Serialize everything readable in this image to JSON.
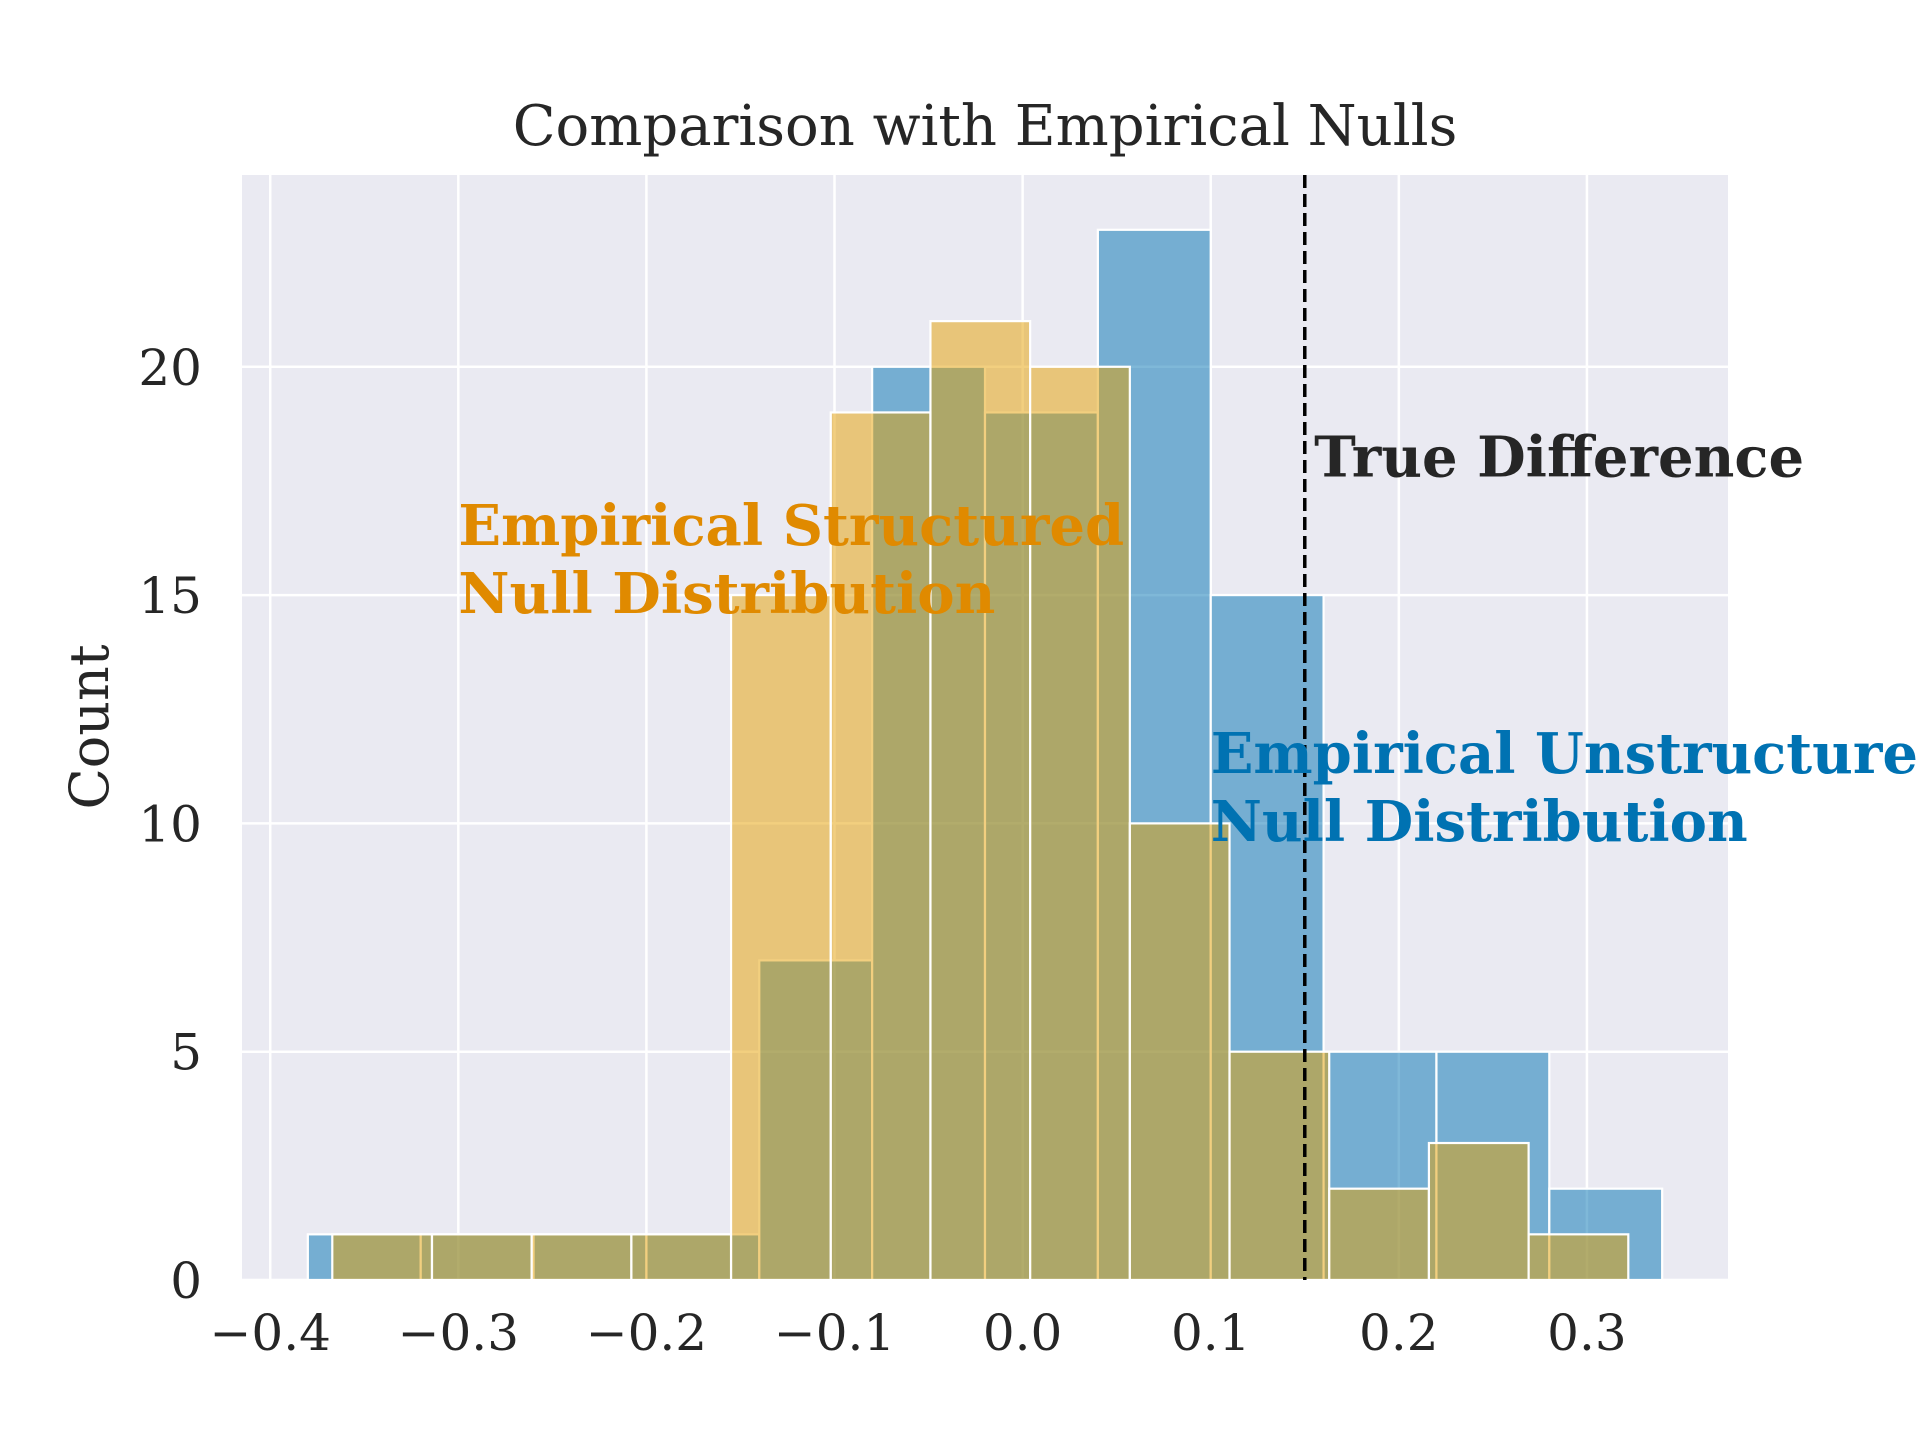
{
  "chart_data": {
    "type": "bar",
    "subtype": "overlaid-histogram",
    "title": "Comparison with Empirical Nulls",
    "xlabel": "",
    "ylabel": "Count",
    "xlim": [
      -0.415,
      0.375
    ],
    "ylim": [
      0,
      24.2
    ],
    "xticks": [
      -0.4,
      -0.3,
      -0.2,
      -0.1,
      0.0,
      0.1,
      0.2,
      0.3
    ],
    "xtick_labels": [
      "−0.4",
      "−0.3",
      "−0.2",
      "−0.1",
      "0.0",
      "0.1",
      "0.2",
      "0.3"
    ],
    "yticks": [
      0,
      5,
      10,
      15,
      20
    ],
    "ytick_labels": [
      "0",
      "5",
      "10",
      "15",
      "20"
    ],
    "grid": true,
    "series": [
      {
        "color": "#0072B2",
        "alpha": 0.5,
        "bin_edges": [
          -0.38,
          -0.32,
          -0.26,
          -0.2,
          -0.14,
          -0.08,
          -0.02,
          0.04,
          0.1,
          0.16,
          0.22,
          0.28,
          0.34
        ],
        "counts": [
          1,
          1,
          1,
          1,
          7,
          20,
          19,
          23,
          15,
          5,
          5,
          2
        ]
      },
      {
        "color": "#E69F00",
        "alpha": 0.5,
        "bin_edges": [
          -0.367,
          -0.314,
          -0.261,
          -0.208,
          -0.155,
          -0.102,
          -0.049,
          0.004,
          0.057,
          0.11,
          0.163,
          0.216,
          0.269,
          0.322
        ],
        "counts": [
          1,
          1,
          1,
          1,
          15,
          19,
          21,
          20,
          10,
          5,
          2,
          3,
          1
        ]
      }
    ],
    "vline": {
      "x": 0.15,
      "style": "dashed",
      "color": "#000000"
    },
    "annotations": [
      {
        "lines": [
          "True Difference"
        ],
        "x": 0.155,
        "y": 17.6,
        "color": "#262626"
      },
      {
        "lines": [
          "Empirical Structured",
          "Null Distribution"
        ],
        "x": -0.3,
        "y": 16.1,
        "color": "#E08A00"
      },
      {
        "lines": [
          "Empirical Unstructured",
          "Null Distribution"
        ],
        "x": 0.1,
        "y": 11.1,
        "color": "#0072B2"
      }
    ]
  }
}
